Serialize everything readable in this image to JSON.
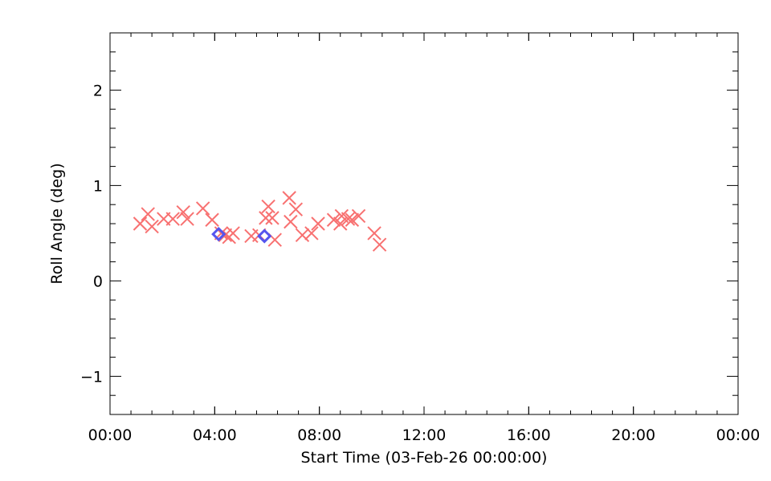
{
  "chart_data": {
    "type": "scatter",
    "xlabel": "Start Time (03-Feb-26 00:00:00)",
    "ylabel": "Roll Angle (deg)",
    "xlim": [
      0,
      24
    ],
    "ylim": [
      -1.4,
      2.6
    ],
    "x_ticks": [
      {
        "value": 0,
        "label": "00:00"
      },
      {
        "value": 4,
        "label": "04:00"
      },
      {
        "value": 8,
        "label": "08:00"
      },
      {
        "value": 12,
        "label": "12:00"
      },
      {
        "value": 16,
        "label": "16:00"
      },
      {
        "value": 20,
        "label": "20:00"
      },
      {
        "value": 24,
        "label": "00:00"
      }
    ],
    "y_ticks": [
      {
        "value": -1,
        "label": "−1"
      },
      {
        "value": 0,
        "label": "0"
      },
      {
        "value": 1,
        "label": "1"
      },
      {
        "value": 2,
        "label": "2"
      }
    ],
    "x_minor_step": 0.8,
    "y_minor_step": 0.2,
    "grid": false,
    "colors": {
      "series_x": "#f87171",
      "series_diamond": "#5555ee",
      "axis": "#000000"
    },
    "series": [
      {
        "marker": "x",
        "color": "#f87171",
        "points": [
          [
            1.15,
            0.6
          ],
          [
            1.45,
            0.7
          ],
          [
            1.6,
            0.57
          ],
          [
            2.05,
            0.65
          ],
          [
            2.4,
            0.65
          ],
          [
            2.8,
            0.72
          ],
          [
            2.95,
            0.65
          ],
          [
            3.55,
            0.76
          ],
          [
            3.9,
            0.64
          ],
          [
            4.25,
            0.5
          ],
          [
            4.4,
            0.48
          ],
          [
            4.55,
            0.46
          ],
          [
            4.7,
            0.5
          ],
          [
            5.4,
            0.47
          ],
          [
            5.7,
            0.48
          ],
          [
            5.95,
            0.66
          ],
          [
            6.05,
            0.78
          ],
          [
            6.2,
            0.66
          ],
          [
            6.3,
            0.43
          ],
          [
            6.85,
            0.87
          ],
          [
            6.9,
            0.62
          ],
          [
            7.1,
            0.75
          ],
          [
            7.35,
            0.48
          ],
          [
            7.7,
            0.5
          ],
          [
            7.95,
            0.6
          ],
          [
            8.55,
            0.64
          ],
          [
            8.8,
            0.6
          ],
          [
            8.85,
            0.68
          ],
          [
            9.1,
            0.65
          ],
          [
            9.25,
            0.64
          ],
          [
            9.5,
            0.68
          ],
          [
            10.1,
            0.5
          ],
          [
            10.3,
            0.38
          ]
        ]
      },
      {
        "marker": "diamond",
        "color": "#5555ee",
        "points": [
          [
            4.15,
            0.49
          ],
          [
            5.9,
            0.47
          ]
        ]
      }
    ]
  }
}
